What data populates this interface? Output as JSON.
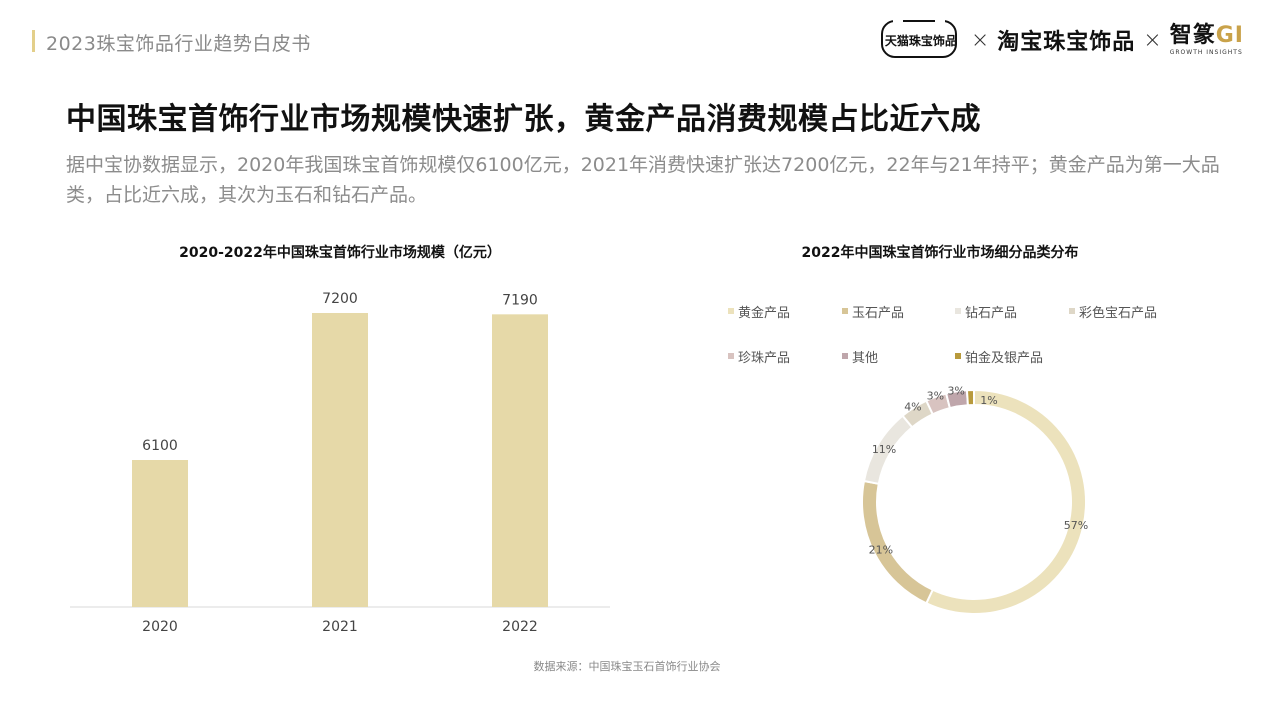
{
  "header": {
    "title": "2023珠宝饰品行业趋势白皮书"
  },
  "logos": {
    "tmall": "天猫珠宝饰品",
    "sep": "×",
    "taobao": "淘宝珠宝饰品",
    "zz_main": "智篆",
    "zz_gi": "GI",
    "zz_sub": "GROWTH  INSIGHTS"
  },
  "main": {
    "title": "中国珠宝首饰行业市场规模快速扩张，黄金产品消费规模占比近六成",
    "subtitle": "据中宝协数据显示，2020年我国珠宝首饰规模仅6100亿元，2021年消费快速扩张达7200亿元，22年与21年持平；黄金产品为第一大品类，占比近六成，其次为玉石和钻石产品。"
  },
  "source": "数据来源：中国珠宝玉石首饰行业协会",
  "chart_data": [
    {
      "type": "bar",
      "title": "2020-2022年中国珠宝首饰行业市场规模（亿元）",
      "categories": [
        "2020",
        "2021",
        "2022"
      ],
      "values": [
        6100,
        7200,
        7190
      ],
      "ylim": [
        5000,
        7400
      ],
      "grid": false,
      "color": "#e6d9a8"
    },
    {
      "type": "pie",
      "style": "donut",
      "title": "2022年中国珠宝首饰行业市场细分品类分布",
      "legend_position": "top",
      "slices": [
        {
          "label": "黄金产品",
          "value": 57,
          "text": "57%",
          "color": "#ece2bc"
        },
        {
          "label": "玉石产品",
          "value": 21,
          "text": "21%",
          "color": "#d7c597"
        },
        {
          "label": "钻石产品",
          "value": 11,
          "text": "11%",
          "color": "#e9e6df"
        },
        {
          "label": "彩色宝石产品",
          "value": 4,
          "text": "4%",
          "color": "#ded7c7"
        },
        {
          "label": "珍珠产品",
          "value": 3,
          "text": "3%",
          "color": "#d8c3c0"
        },
        {
          "label": "其他",
          "value": 3,
          "text": "3%",
          "color": "#bfa6ab"
        },
        {
          "label": "铂金及银产品",
          "value": 1,
          "text": "1%",
          "color": "#b89a3c"
        }
      ]
    }
  ]
}
